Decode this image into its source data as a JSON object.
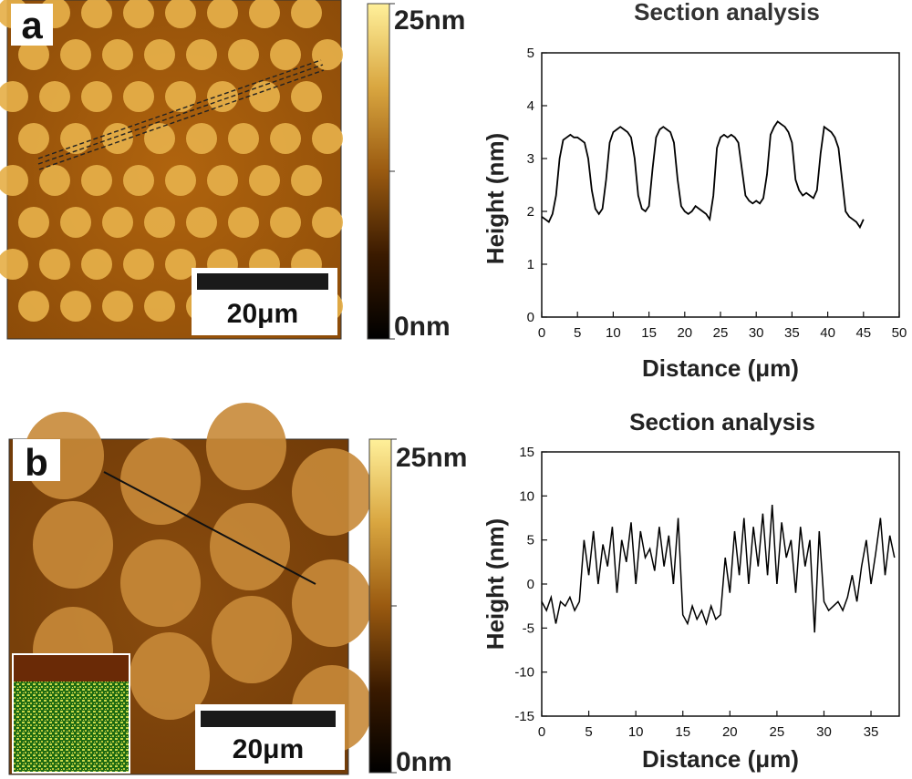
{
  "colors": {
    "afm_dark": "#5a2e00",
    "afm_mid": "#b86a12",
    "afm_dot": "#e6b04a",
    "afm_dot_b": "#c88a38",
    "colorbar_top": "#fff09a",
    "colorbar_bottom": "#000000",
    "line": "#000000",
    "panel_label_bg": "#ffffff"
  },
  "panels": [
    {
      "label": "a",
      "colorbar_top": "25nm",
      "colorbar_bottom": "0nm",
      "scalebar_label": "20μm"
    },
    {
      "label": "b",
      "colorbar_top": "25nm",
      "colorbar_bottom": "0nm",
      "scalebar_label": "20μm"
    }
  ],
  "chart_data": [
    {
      "type": "line",
      "title": "Section analysis",
      "xlabel": "Distance (μm)",
      "ylabel": "Height (nm)",
      "xlim": [
        0,
        50
      ],
      "ylim": [
        0,
        5
      ],
      "xticks": [
        "0",
        "5",
        "10",
        "15",
        "20",
        "25",
        "30",
        "35",
        "40",
        "45",
        "50"
      ],
      "yticks": [
        "0",
        "1",
        "2",
        "3",
        "4",
        "5"
      ],
      "x": [
        0,
        0.5,
        1,
        1.5,
        2,
        2.5,
        3,
        3.5,
        4,
        4.5,
        5,
        5.5,
        6,
        6.5,
        7,
        7.5,
        8,
        8.5,
        9,
        9.5,
        10,
        10.5,
        11,
        11.5,
        12,
        12.5,
        13,
        13.5,
        14,
        14.5,
        15,
        15.5,
        16,
        16.5,
        17,
        17.5,
        18,
        18.5,
        19,
        19.5,
        20,
        20.5,
        21,
        21.5,
        22,
        22.5,
        23,
        23.5,
        24,
        24.5,
        25,
        25.5,
        26,
        26.5,
        27,
        27.5,
        28,
        28.5,
        29,
        29.5,
        30,
        30.5,
        31,
        31.5,
        32,
        32.5,
        33,
        33.5,
        34,
        34.5,
        35,
        35.5,
        36,
        36.5,
        37,
        37.5,
        38,
        38.5,
        39,
        39.5,
        40,
        40.5,
        41,
        41.5,
        42,
        42.5,
        43,
        43.5,
        44,
        44.5,
        45
      ],
      "y": [
        1.9,
        1.85,
        1.8,
        1.95,
        2.3,
        3.0,
        3.35,
        3.4,
        3.45,
        3.4,
        3.4,
        3.35,
        3.3,
        3.0,
        2.4,
        2.05,
        1.95,
        2.05,
        2.6,
        3.3,
        3.5,
        3.55,
        3.6,
        3.55,
        3.5,
        3.4,
        3.0,
        2.3,
        2.05,
        2.0,
        2.1,
        2.8,
        3.4,
        3.55,
        3.6,
        3.55,
        3.5,
        3.3,
        2.6,
        2.1,
        2.0,
        1.95,
        2.0,
        2.1,
        2.05,
        2.0,
        1.95,
        1.85,
        2.3,
        3.2,
        3.4,
        3.45,
        3.4,
        3.45,
        3.4,
        3.3,
        2.8,
        2.3,
        2.2,
        2.15,
        2.2,
        2.15,
        2.25,
        2.7,
        3.45,
        3.6,
        3.7,
        3.65,
        3.6,
        3.5,
        3.3,
        2.6,
        2.4,
        2.3,
        2.35,
        2.3,
        2.25,
        2.4,
        3.1,
        3.6,
        3.55,
        3.5,
        3.4,
        3.2,
        2.6,
        2.0,
        1.9,
        1.85,
        1.8,
        1.7,
        1.85
      ]
    },
    {
      "type": "line",
      "title": "Section analysis",
      "xlabel": "Distance (μm)",
      "ylabel": "Height (nm)",
      "xlim": [
        0,
        38
      ],
      "ylim": [
        -15,
        15
      ],
      "xticks": [
        "0",
        "5",
        "10",
        "15",
        "20",
        "25",
        "30",
        "35"
      ],
      "yticks": [
        "-15",
        "-10",
        "-5",
        "0",
        "5",
        "10",
        "15"
      ],
      "x": [
        0,
        0.5,
        1,
        1.5,
        2,
        2.5,
        3,
        3.5,
        4,
        4.5,
        5,
        5.5,
        6,
        6.5,
        7,
        7.5,
        8,
        8.5,
        9,
        9.5,
        10,
        10.5,
        11,
        11.5,
        12,
        12.5,
        13,
        13.5,
        14,
        14.5,
        15,
        15.5,
        16,
        16.5,
        17,
        17.5,
        18,
        18.5,
        19,
        19.5,
        20,
        20.5,
        21,
        21.5,
        22,
        22.5,
        23,
        23.5,
        24,
        24.5,
        25,
        25.5,
        26,
        26.5,
        27,
        27.5,
        28,
        28.5,
        29,
        29.5,
        30,
        30.5,
        31,
        31.5,
        32,
        32.5,
        33,
        33.5,
        34,
        34.5,
        35,
        35.5,
        36,
        36.5,
        37,
        37.5
      ],
      "y": [
        -2,
        -3,
        -1.5,
        -4.5,
        -2,
        -2.5,
        -1.5,
        -3,
        -2,
        5,
        1,
        6,
        0,
        4.5,
        2,
        6.5,
        -1,
        5,
        2.5,
        7,
        0,
        6,
        3,
        4,
        1.5,
        6.5,
        2,
        5.5,
        0,
        7.5,
        -3.5,
        -4.5,
        -2.5,
        -4,
        -3,
        -4.5,
        -2.5,
        -4,
        -3.5,
        3,
        -1,
        6,
        1,
        7.5,
        0,
        6.5,
        2,
        8,
        1,
        9,
        0,
        7,
        3,
        5,
        -1,
        6.5,
        2,
        5,
        -5.5,
        6,
        -2,
        -3,
        -2.5,
        -2,
        -3,
        -1.5,
        1,
        -2,
        2,
        5,
        0,
        3.5,
        7.5,
        1,
        5.5,
        3
      ]
    }
  ]
}
